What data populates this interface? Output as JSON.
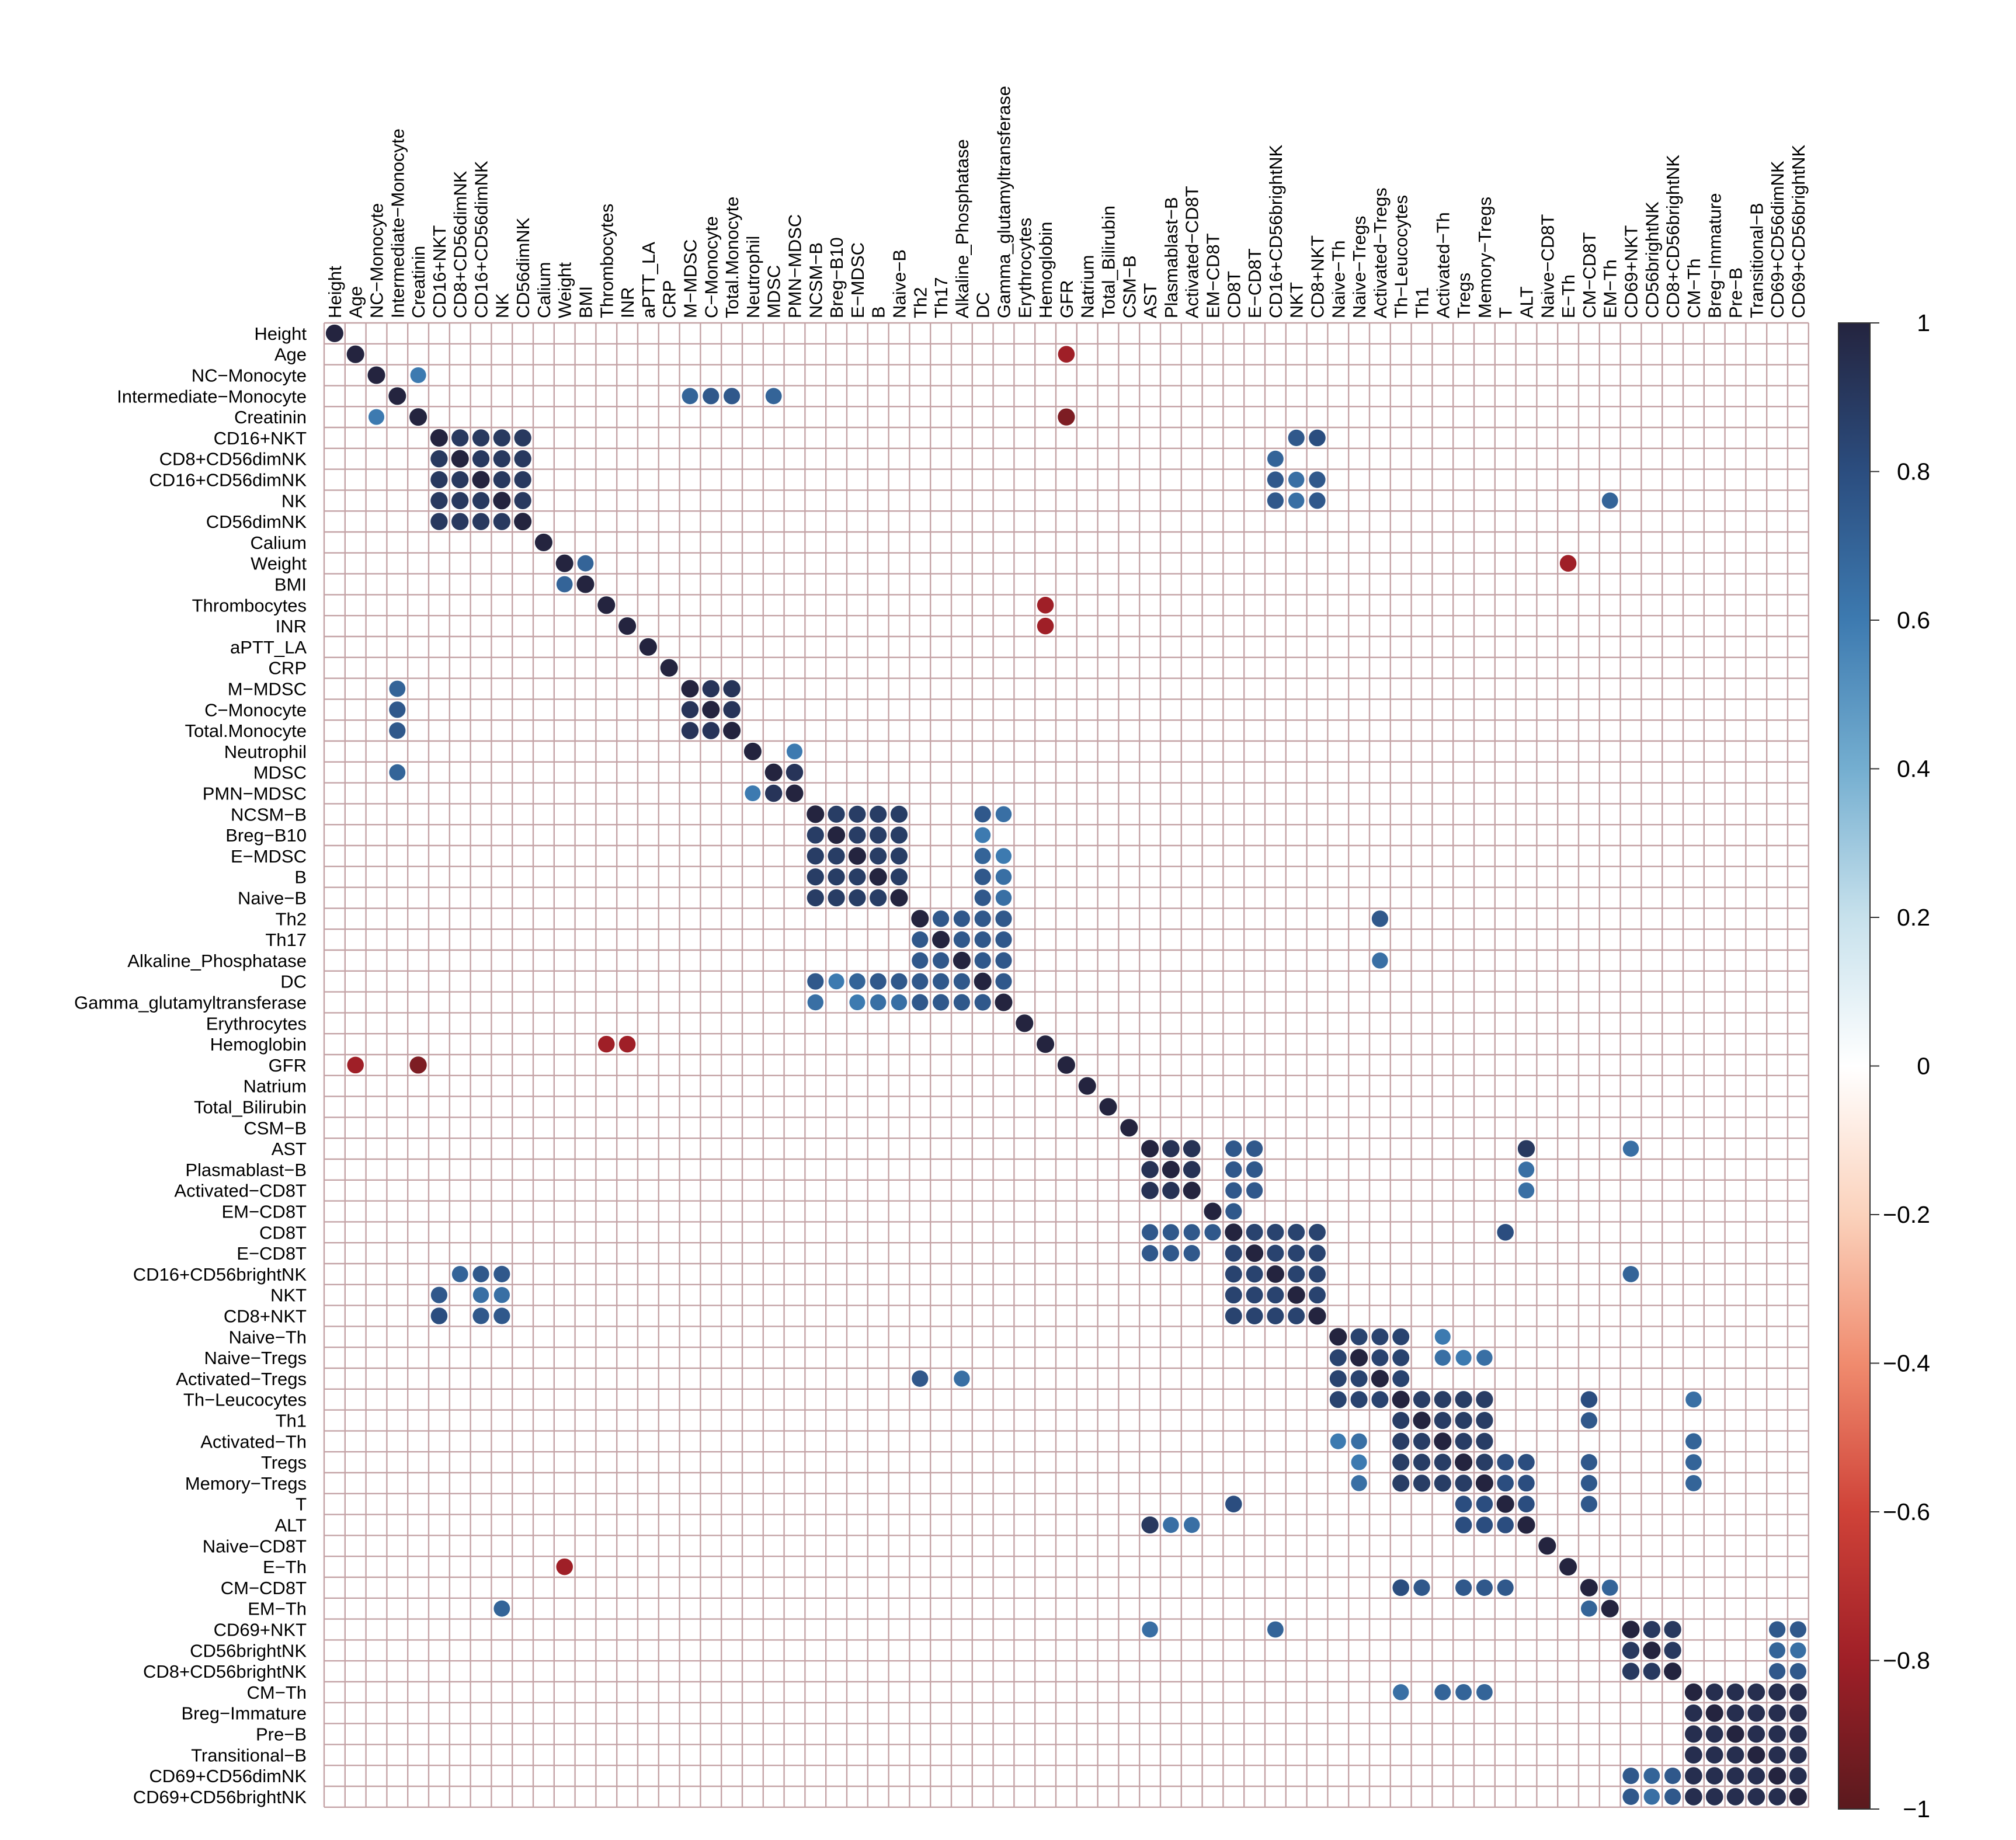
{
  "chart_data": {
    "type": "heatmap",
    "title": "",
    "description_mark": "circle",
    "variables": [
      "Height",
      "Age",
      "NC−Monocyte",
      "Intermediate−Monocyte",
      "Creatinin",
      "CD16+NKT",
      "CD8+CD56dimNK",
      "CD16+CD56dimNK",
      "NK",
      "CD56dimNK",
      "Calium",
      "Weight",
      "BMI",
      "Thrombocytes",
      "INR",
      "aPTT_LA",
      "CRP",
      "M−MDSC",
      "C−Monocyte",
      "Total.Monocyte",
      "Neutrophil",
      "MDSC",
      "PMN−MDSC",
      "NCSM−B",
      "Breg−B10",
      "E−MDSC",
      "B",
      "Naive−B",
      "Th2",
      "Th17",
      "Alkaline_Phosphatase",
      "DC",
      "Gamma_glutamyltransferase",
      "Erythrocytes",
      "Hemoglobin",
      "GFR",
      "Natrium",
      "Total_Bilirubin",
      "CSM−B",
      "AST",
      "Plasmablast−B",
      "Activated−CD8T",
      "EM−CD8T",
      "CD8T",
      "E−CD8T",
      "CD16+CD56brightNK",
      "NKT",
      "CD8+NKT",
      "Naive−Th",
      "Naive−Tregs",
      "Activated−Tregs",
      "Th−Leucocytes",
      "Th1",
      "Activated−Th",
      "Tregs",
      "Memory−Tregs",
      "T",
      "ALT",
      "Naive−CD8T",
      "E−Th",
      "CM−CD8T",
      "EM−Th",
      "CD69+NKT",
      "CD56brightNK",
      "CD8+CD56brightNK",
      "CM−Th",
      "Breg−Immature",
      "Pre−B",
      "Transitional−B",
      "CD69+CD56dimNK",
      "CD69+CD56brightNK"
    ],
    "significant_pairs": [
      [
        1,
        35,
        -0.8
      ],
      [
        2,
        4,
        0.6
      ],
      [
        3,
        17,
        0.7
      ],
      [
        3,
        18,
        0.75
      ],
      [
        3,
        19,
        0.75
      ],
      [
        3,
        21,
        0.7
      ],
      [
        4,
        35,
        -0.9
      ],
      [
        5,
        46,
        0.75
      ],
      [
        5,
        47,
        0.8
      ],
      [
        6,
        45,
        0.7
      ],
      [
        7,
        45,
        0.75
      ],
      [
        7,
        46,
        0.65
      ],
      [
        7,
        47,
        0.75
      ],
      [
        8,
        45,
        0.75
      ],
      [
        8,
        46,
        0.65
      ],
      [
        8,
        47,
        0.75
      ],
      [
        8,
        61,
        0.7
      ],
      [
        11,
        59,
        -0.8
      ],
      [
        13,
        34,
        -0.8
      ],
      [
        14,
        34,
        -0.8
      ],
      [
        20,
        22,
        0.6
      ],
      [
        21,
        22,
        0.9
      ],
      [
        23,
        31,
        0.75
      ],
      [
        23,
        32,
        0.65
      ],
      [
        24,
        31,
        0.6
      ],
      [
        25,
        31,
        0.7
      ],
      [
        25,
        32,
        0.6
      ],
      [
        26,
        31,
        0.75
      ],
      [
        26,
        32,
        0.65
      ],
      [
        27,
        31,
        0.75
      ],
      [
        27,
        32,
        0.65
      ],
      [
        28,
        50,
        0.75
      ],
      [
        30,
        50,
        0.65
      ],
      [
        23,
        35,
        0.0
      ],
      [
        39,
        43,
        0.75
      ],
      [
        39,
        44,
        0.75
      ],
      [
        39,
        57,
        0.9
      ],
      [
        39,
        62,
        0.65
      ],
      [
        40,
        43,
        0.75
      ],
      [
        40,
        44,
        0.75
      ],
      [
        40,
        57,
        0.65
      ],
      [
        41,
        43,
        0.75
      ],
      [
        41,
        44,
        0.75
      ],
      [
        41,
        57,
        0.65
      ],
      [
        42,
        43,
        0.75
      ],
      [
        43,
        56,
        0.8
      ],
      [
        45,
        62,
        0.7
      ],
      [
        48,
        53,
        0.6
      ],
      [
        49,
        53,
        0.65
      ],
      [
        49,
        54,
        0.6
      ],
      [
        49,
        55,
        0.65
      ],
      [
        51,
        60,
        0.8
      ],
      [
        51,
        65,
        0.65
      ],
      [
        52,
        60,
        0.75
      ],
      [
        53,
        65,
        0.7
      ],
      [
        54,
        57,
        0.75
      ],
      [
        54,
        60,
        0.75
      ],
      [
        54,
        65,
        0.7
      ],
      [
        55,
        57,
        0.75
      ],
      [
        55,
        60,
        0.75
      ],
      [
        55,
        65,
        0.7
      ],
      [
        56,
        60,
        0.75
      ],
      [
        62,
        63,
        0.75
      ],
      [
        62,
        64,
        0.75
      ],
      [
        62,
        69,
        0.75
      ],
      [
        62,
        70,
        0.75
      ],
      [
        63,
        69,
        0.7
      ],
      [
        63,
        70,
        0.65
      ],
      [
        64,
        69,
        0.75
      ],
      [
        64,
        70,
        0.75
      ]
    ],
    "correlation_range": [
      -1,
      1
    ],
    "colorbar_label": "",
    "colorbar_ticks": [
      "1",
      "0.8",
      "0.6",
      "0.4",
      "0.2",
      "0",
      "−0.2",
      "−0.4",
      "−0.6",
      "−0.8",
      "−1"
    ],
    "colorbar_tick_values": [
      1,
      0.8,
      0.6,
      0.4,
      0.2,
      0,
      -0.2,
      -0.4,
      -0.6,
      -0.8,
      -1
    ],
    "colors": {
      "neg": "#67001f",
      "neg_mid": "#d6604d",
      "zero": "#ffffff",
      "pos_mid": "#4393c3",
      "pos": "#262a48"
    },
    "legend_position": "right"
  }
}
